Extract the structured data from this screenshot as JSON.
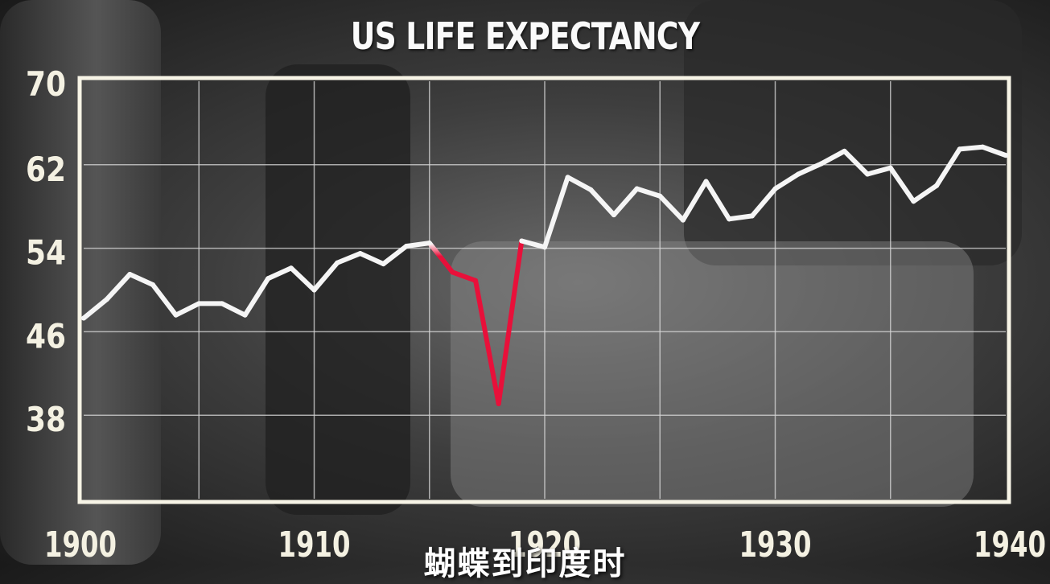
{
  "chart_data": {
    "type": "line",
    "title": "US LIFE EXPECTANCY",
    "subtitle": "蝴蝶到印度时",
    "xlim": [
      1900,
      1940
    ],
    "ylim": [
      30,
      70
    ],
    "x_ticks": [
      1900,
      1910,
      1920,
      1930,
      1940
    ],
    "y_ticks": [
      38,
      46,
      54,
      62,
      70
    ],
    "grid": true,
    "highlight_color": "#e8103a",
    "line_color": "#f5f5f5",
    "highlight_range": [
      1915,
      1919
    ],
    "series": [
      {
        "x": [
          1900,
          1901,
          1902,
          1903,
          1904,
          1905,
          1906,
          1907,
          1908,
          1909,
          1910,
          1911,
          1912,
          1913,
          1914,
          1915,
          1916,
          1917,
          1918,
          1919,
          1920,
          1921,
          1922,
          1923,
          1924,
          1925,
          1926,
          1927,
          1928,
          1929,
          1930,
          1931,
          1932,
          1933,
          1934,
          1935,
          1936,
          1937,
          1938,
          1939,
          1940
        ],
        "y": [
          47.3,
          49.1,
          51.5,
          50.5,
          47.6,
          48.7,
          48.7,
          47.6,
          51.1,
          52.1,
          50.0,
          52.6,
          53.5,
          52.5,
          54.2,
          54.5,
          51.7,
          50.9,
          39.1,
          54.7,
          54.1,
          60.8,
          59.6,
          57.2,
          59.7,
          59.0,
          56.7,
          60.4,
          56.8,
          57.1,
          59.7,
          61.1,
          62.1,
          63.3,
          61.1,
          61.7,
          58.5,
          60.0,
          63.5,
          63.7,
          62.9
        ]
      }
    ]
  }
}
